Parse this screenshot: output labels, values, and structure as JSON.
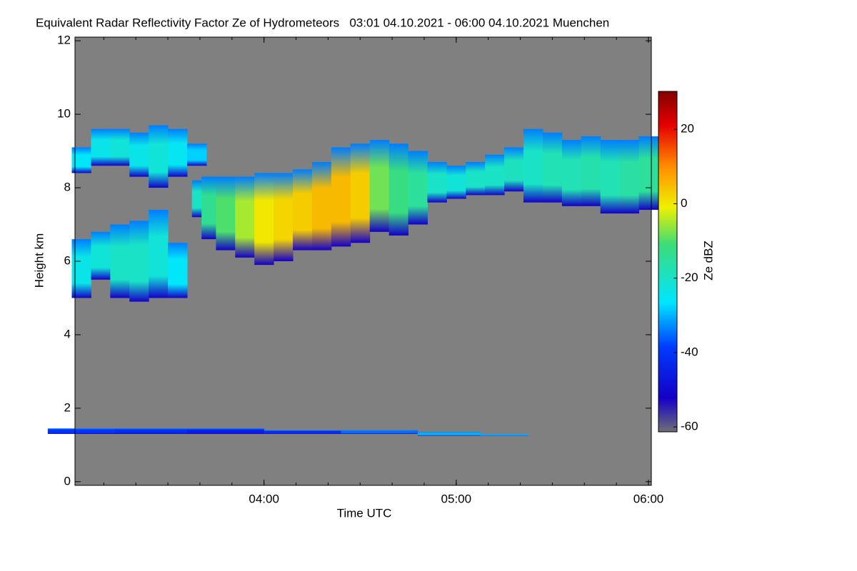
{
  "chart_data": {
    "type": "radar-heatmap",
    "title": "Equivalent Radar Reflectivity Factor Ze of Hydrometeors   03:01 04.10.2021 - 06:00 04.10.2021 Muenchen",
    "x_label": "Time UTC",
    "y_label": "Height km",
    "colorbar_label": "Ze dBZ",
    "xlim": [
      3.0167,
      6.015
    ],
    "xticks": [
      {
        "value": 4,
        "label": "04:00"
      },
      {
        "value": 5,
        "label": "05:00"
      },
      {
        "value": 6,
        "label": "06:00"
      }
    ],
    "ylim": [
      -0.1,
      12.1
    ],
    "yticks": [
      0,
      2,
      4,
      6,
      8,
      10,
      12
    ],
    "clim": [
      -61.3,
      30.2
    ],
    "cticks": [
      -60,
      -40,
      -20,
      0,
      20
    ],
    "background": "#808080",
    "layers": [
      {
        "x": [
          3.05,
          3.15,
          3.25,
          3.35,
          3.45,
          3.55,
          3.65
        ],
        "base": [
          8.4,
          8.6,
          8.6,
          8.3,
          8.0,
          8.3,
          8.6
        ],
        "top": [
          9.1,
          9.6,
          9.6,
          9.5,
          9.7,
          9.6,
          9.2
        ],
        "ze": [
          -26,
          -24,
          -22,
          -24,
          -22,
          -25,
          -28
        ]
      },
      {
        "x": [
          3.05,
          3.15,
          3.25,
          3.35,
          3.45,
          3.55
        ],
        "base": [
          5.0,
          5.5,
          5.0,
          4.9,
          5.0,
          5.0
        ],
        "top": [
          6.6,
          6.8,
          7.0,
          7.1,
          7.4,
          6.5
        ],
        "ze": [
          -24,
          -22,
          -20,
          -20,
          -22,
          -26
        ]
      },
      {
        "x": [
          3.65,
          3.7,
          3.8,
          3.9,
          4.0,
          4.1,
          4.2,
          4.3,
          4.4,
          4.5,
          4.6,
          4.7,
          4.8,
          4.9,
          5.0,
          5.1,
          5.2,
          5.3,
          5.4,
          5.5,
          5.6,
          5.7,
          5.8,
          5.9,
          6.0
        ],
        "base": [
          7.2,
          6.6,
          6.3,
          6.1,
          5.9,
          6.0,
          6.3,
          6.3,
          6.4,
          6.5,
          6.8,
          6.7,
          7.0,
          7.6,
          7.7,
          7.8,
          7.8,
          7.9,
          7.6,
          7.6,
          7.5,
          7.5,
          7.3,
          7.3,
          7.4
        ],
        "top": [
          8.2,
          8.3,
          8.3,
          8.3,
          8.4,
          8.4,
          8.5,
          8.7,
          9.1,
          9.2,
          9.3,
          9.2,
          9.0,
          8.7,
          8.6,
          8.7,
          8.9,
          9.1,
          9.6,
          9.5,
          9.3,
          9.4,
          9.3,
          9.3,
          9.4
        ],
        "ze": [
          -20,
          -14,
          -10,
          -5,
          0,
          2,
          3,
          5,
          5,
          3,
          -8,
          -12,
          -15,
          -20,
          -22,
          -20,
          -20,
          -19,
          -20,
          -18,
          -18,
          -17,
          -18,
          -16,
          -15
        ]
      },
      {
        "x": [
          3.05,
          3.4,
          3.8,
          4.2,
          4.6,
          5.0,
          5.25
        ],
        "base": [
          1.3,
          1.3,
          1.3,
          1.3,
          1.3,
          1.25,
          1.25
        ],
        "top": [
          1.45,
          1.45,
          1.45,
          1.4,
          1.4,
          1.35,
          1.3
        ],
        "ze": [
          -40,
          -42,
          -45,
          -42,
          -35,
          -30,
          -30
        ]
      }
    ]
  }
}
